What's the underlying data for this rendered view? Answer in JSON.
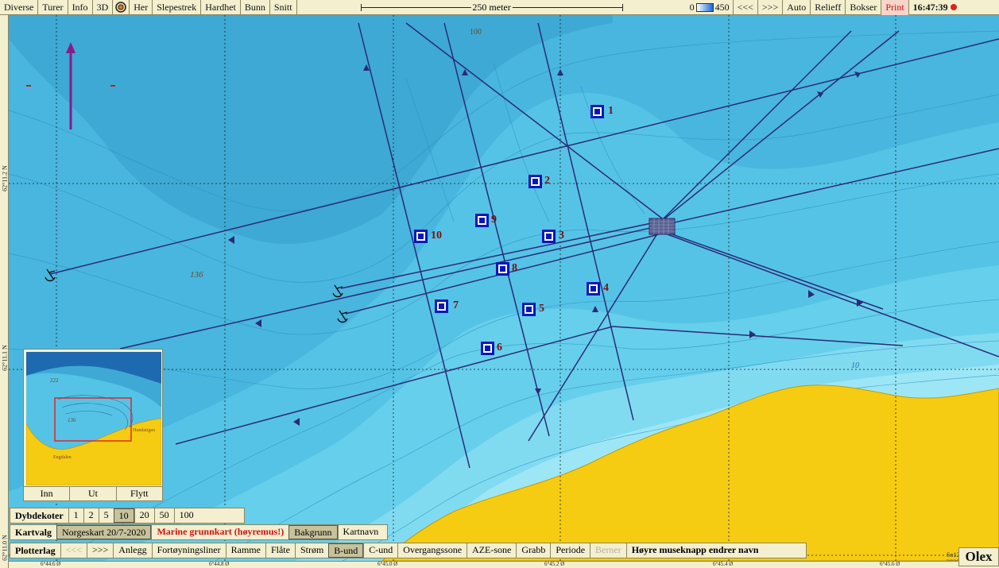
{
  "toolbar": {
    "menu": [
      "Diverse",
      "Turer",
      "Info",
      "3D"
    ],
    "menu_after": [
      "Her",
      "Slepestrek",
      "Hardhet",
      "Bunn",
      "Snitt"
    ],
    "scale_label": "250 meter",
    "depth_min": "0",
    "depth_max": "450",
    "right_buttons": [
      "<<<",
      ">>>",
      "Auto",
      "Relieff",
      "Bokser"
    ],
    "print_label": "Print",
    "clock": "16:47:39"
  },
  "lat_labels": [
    "62°11.2 N",
    "62°11.1 N",
    "62°11.0 N"
  ],
  "lon_labels": [
    "6°44.6 Ø",
    "6°44.8 Ø",
    "6°45.0 Ø",
    "6°45.2 Ø",
    "6°45.4 Ø",
    "6°45.6 Ø"
  ],
  "depth_labels": {
    "d100": "100",
    "d136": "136",
    "d10": "10"
  },
  "stations": [
    "1",
    "2",
    "3",
    "4",
    "5",
    "6",
    "7",
    "8",
    "9",
    "10"
  ],
  "overview": {
    "labels": {
      "a": "222",
      "b": "136",
      "c": "Hundatigen",
      "d": "Engdalen"
    },
    "buttons": [
      "Inn",
      "Ut",
      "Flytt"
    ]
  },
  "dybdekoter": {
    "title": "Dybdekoter",
    "options": [
      "1",
      "2",
      "5",
      "10",
      "20",
      "50",
      "100"
    ],
    "selected": "10"
  },
  "kartvalg": {
    "title": "Kartvalg",
    "chart": "Norgeskart 20/7-2020",
    "marine": "Marine grunnkart (høyremus!)",
    "background": "Bakgrunn",
    "names": "Kartnavn"
  },
  "plotterlag": {
    "title": "Plotterlag",
    "nav": [
      "<<<",
      ">>>"
    ],
    "layers": [
      "Anlegg",
      "Fortøyningsliner",
      "Ramme",
      "Flåte",
      "Strøm",
      "B-und",
      "C-und",
      "Overgangssone",
      "AZE-sone",
      "Grabb",
      "Periode",
      "Berner"
    ],
    "selected": "B-und",
    "disabled": "Berner",
    "hint": "Høyre museknapp endrer navn"
  },
  "map_id": "Sn12479, 26/11-2020",
  "logo": "Olex"
}
